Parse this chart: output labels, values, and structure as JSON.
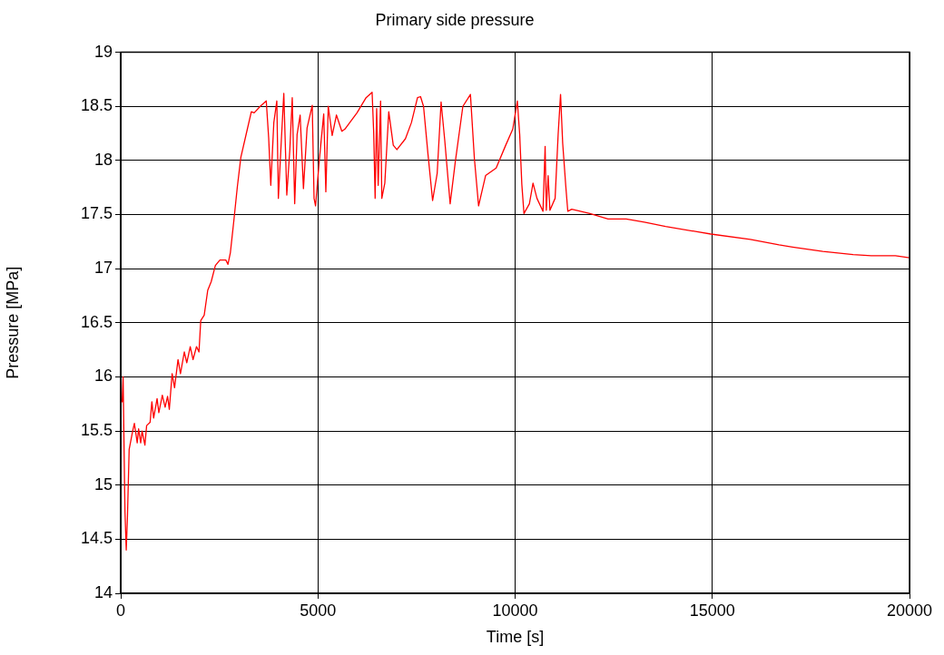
{
  "chart_data": {
    "type": "line",
    "title": "Primary side pressure",
    "xlabel": "Time [s]",
    "ylabel": "Pressure [MPa]",
    "x": [
      0,
      37,
      60,
      108,
      140,
      170,
      214,
      303,
      347,
      418,
      453,
      506,
      542,
      613,
      657,
      745,
      790,
      834,
      922,
      966,
      1055,
      1126,
      1188,
      1232,
      1303,
      1365,
      1453,
      1515,
      1612,
      1675,
      1763,
      1834,
      1922,
      1984,
      2029,
      2117,
      2206,
      2294,
      2400,
      2515,
      2666,
      2719,
      2781,
      2870,
      2958,
      3046,
      3179,
      3312,
      3383,
      3536,
      3690,
      3751,
      3805,
      3882,
      3958,
      3997,
      4073,
      4135,
      4211,
      4288,
      4349,
      4411,
      4472,
      4549,
      4633,
      4725,
      4856,
      4902,
      4940,
      5032,
      5147,
      5201,
      5262,
      5362,
      5469,
      5607,
      5684,
      5991,
      6221,
      6374,
      6413,
      6451,
      6489,
      6528,
      6589,
      6620,
      6696,
      6796,
      6911,
      7003,
      7218,
      7371,
      7525,
      7602,
      7678,
      7793,
      7908,
      8024,
      8123,
      8215,
      8353,
      8484,
      8675,
      8867,
      8967,
      9074,
      9251,
      9519,
      9749,
      9941,
      10056,
      10116,
      10170,
      10224,
      10362,
      10454,
      10554,
      10707,
      10761,
      10791,
      10837,
      10883,
      11014,
      11091,
      11152,
      11206,
      11283,
      11336,
      11436,
      11896,
      12356,
      12816,
      13277,
      13814,
      14964,
      15961,
      16690,
      17035,
      17802,
      18569,
      19029,
      19643,
      20000
    ],
    "series": [
      {
        "color": "#ff0000",
        "values": [
          15.77,
          15.77,
          16.0,
          14.75,
          14.4,
          14.7,
          15.33,
          15.5,
          15.57,
          15.39,
          15.52,
          15.39,
          15.5,
          15.37,
          15.55,
          15.58,
          15.77,
          15.62,
          15.8,
          15.67,
          15.83,
          15.72,
          15.82,
          15.7,
          16.03,
          15.9,
          16.16,
          16.03,
          16.23,
          16.13,
          16.28,
          16.16,
          16.28,
          16.23,
          16.52,
          16.57,
          16.8,
          16.88,
          17.03,
          17.08,
          17.08,
          17.04,
          17.15,
          17.45,
          17.76,
          18.03,
          18.24,
          18.45,
          18.44,
          18.5,
          18.55,
          18.21,
          17.77,
          18.35,
          18.55,
          17.65,
          18.19,
          18.62,
          17.68,
          18.1,
          18.58,
          17.6,
          18.24,
          18.42,
          17.74,
          18.3,
          18.51,
          17.65,
          17.58,
          17.99,
          18.43,
          17.71,
          18.5,
          18.23,
          18.42,
          18.27,
          18.29,
          18.44,
          18.58,
          18.63,
          18.27,
          17.65,
          18.48,
          17.77,
          18.55,
          17.65,
          17.79,
          18.45,
          18.14,
          18.1,
          18.2,
          18.35,
          18.58,
          18.59,
          18.5,
          18.05,
          17.63,
          17.88,
          18.54,
          18.19,
          17.6,
          17.99,
          18.5,
          18.61,
          18.02,
          17.58,
          17.86,
          17.93,
          18.13,
          18.29,
          18.55,
          18.24,
          17.78,
          17.51,
          17.6,
          17.79,
          17.65,
          17.53,
          18.13,
          17.54,
          17.86,
          17.54,
          17.65,
          18.24,
          18.61,
          18.16,
          17.77,
          17.53,
          17.55,
          17.51,
          17.46,
          17.46,
          17.43,
          17.39,
          17.32,
          17.27,
          17.22,
          17.2,
          17.16,
          17.13,
          17.12,
          17.12,
          17.1
        ]
      }
    ],
    "xlim": [
      0,
      20000
    ],
    "xticks": [
      0,
      5000,
      10000,
      15000,
      20000
    ],
    "ylim": [
      14,
      19
    ],
    "yticks": [
      14,
      14.5,
      15,
      15.5,
      16,
      16.5,
      17,
      17.5,
      18,
      18.5,
      19
    ],
    "grid": true,
    "marker": "none",
    "line_style": "solid",
    "legend": false
  }
}
